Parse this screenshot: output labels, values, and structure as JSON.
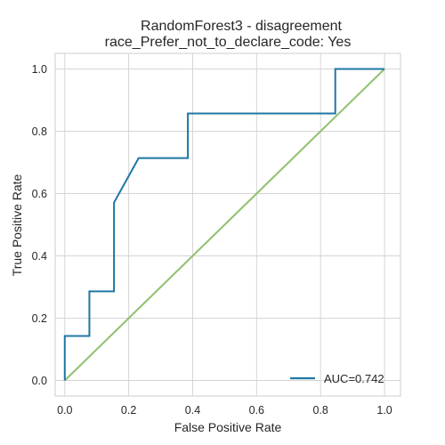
{
  "chart_data": {
    "type": "line",
    "title_line1": "RandomForest3 - disagreement",
    "title_line2": "race_Prefer_not_to_declare_code: Yes",
    "xlabel": "False Positive Rate",
    "ylabel": "True Positive Rate",
    "xlim": [
      -0.03,
      1.05
    ],
    "ylim": [
      -0.05,
      1.05
    ],
    "xticks": [
      0.0,
      0.2,
      0.4,
      0.6,
      0.8,
      1.0
    ],
    "yticks": [
      0.0,
      0.2,
      0.4,
      0.6,
      0.8,
      1.0
    ],
    "xtick_labels": [
      "0.0",
      "0.2",
      "0.4",
      "0.6",
      "0.8",
      "1.0"
    ],
    "ytick_labels": [
      "0.0",
      "0.2",
      "0.4",
      "0.6",
      "0.8",
      "1.0"
    ],
    "grid": true,
    "legend_position": "lower-right",
    "series": [
      {
        "name": "AUC=0.742",
        "color": "#1f77a4",
        "x": [
          0.0,
          0.0,
          0.077,
          0.077,
          0.154,
          0.154,
          0.231,
          0.385,
          0.385,
          0.846,
          0.846,
          1.0
        ],
        "y": [
          0.0,
          0.143,
          0.143,
          0.286,
          0.286,
          0.571,
          0.714,
          0.714,
          0.857,
          0.857,
          1.0,
          1.0
        ]
      },
      {
        "color": "#8fc16e",
        "x": [
          0.0,
          1.0
        ],
        "y": [
          0.0,
          1.0
        ]
      }
    ]
  }
}
